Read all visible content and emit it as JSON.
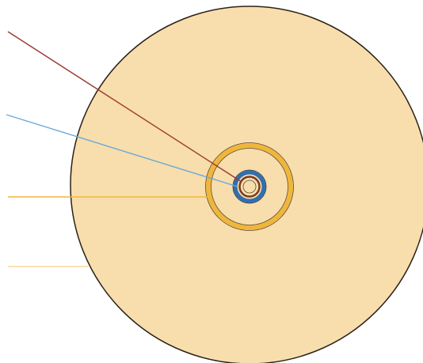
{
  "diagram": {
    "description_visible_text": [],
    "colors": {
      "background": "#ffffff",
      "outer_disc_fill": "#f8deac",
      "outer_disc_stroke": "#2b2118",
      "yellow_ring": "#f0b63a",
      "blue_ring": "#2f6fb1",
      "brown_ring": "#7a3a22",
      "center_core_fill": "#f8deac",
      "leader_line_brown": "#9b3a2c",
      "leader_line_blue": "#6aa9d8",
      "leader_line_yellow": "#f0b63a",
      "leader_line_light": "#f6cf8a"
    }
  }
}
